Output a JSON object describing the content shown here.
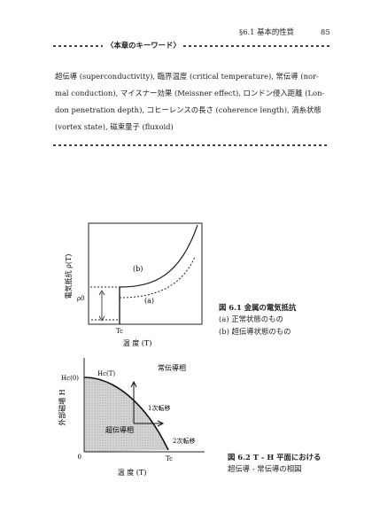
{
  "header": {
    "section": "§6.1 基本的性質",
    "page_number": "85"
  },
  "keywords": {
    "heading": "〈本章のキーワード〉",
    "lines": [
      "超伝導 (superconductivity), 臨界温度 (critical temperature), 常伝導 (nor-",
      "mal conduction), マイスナー効果 (Meissner effect), ロンドン侵入距離 (Lon-",
      "don penetration depth), コヒーレンスの長さ (coherence length), 渦糸状態",
      "(vortex state), 磁束量子 (fluxoid)"
    ]
  },
  "figure1": {
    "ylabel": "電気抵抗 ρ(T)",
    "xlabel": "温 度 (T)",
    "x_tick": "Tc",
    "y_tick": "ρ0",
    "label_b": "(b)",
    "label_a": "(a)",
    "caption_title": "図 6.1 金属の電気抵抗",
    "caption_a": "(a) 正常状態のもの",
    "caption_b": "(b) 超伝導状態のもの"
  },
  "figure2": {
    "ylabel": "外部磁場 H",
    "xlabel": "温 度 (T)",
    "y_tick": "Hc(0)",
    "origin": "0",
    "x_tick": "Tc",
    "curve_label": "Hc(T)",
    "normal_region": "常伝導相",
    "super_region": "超伝導相",
    "first_order": "1次転移",
    "second_order": "2次転移",
    "caption_line1": "図 6.2 T - H 平面における",
    "caption_line2": "超伝導 - 常伝導の相図"
  }
}
